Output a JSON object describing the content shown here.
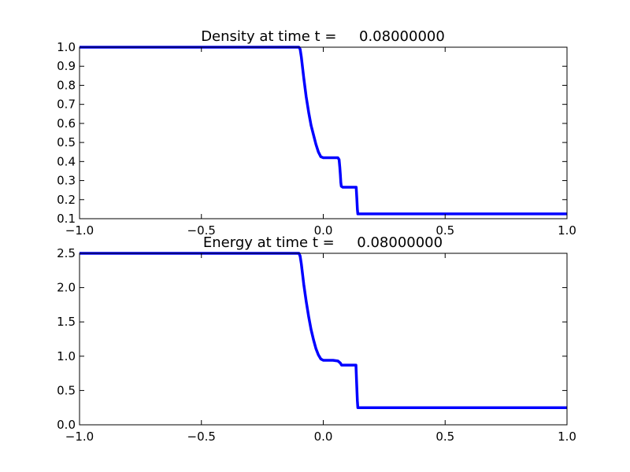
{
  "chart_data": [
    {
      "type": "line",
      "title": "Density at time t =     0.08000000",
      "xlabel": "",
      "ylabel": "",
      "xlim": [
        -1.0,
        1.0
      ],
      "ylim": [
        0.1,
        1.0
      ],
      "xticks": [
        "−1.0",
        "−0.5",
        "0.0",
        "0.5",
        "1.0"
      ],
      "yticks": [
        "0.1",
        "0.2",
        "0.3",
        "0.4",
        "0.5",
        "0.6",
        "0.7",
        "0.8",
        "0.9",
        "1.0"
      ],
      "grid": false,
      "line_color": "#0000ff",
      "series": [
        {
          "x": [
            -1.0,
            -0.1,
            -0.095,
            -0.09,
            -0.08,
            -0.07,
            -0.06,
            -0.05,
            -0.04,
            -0.03,
            -0.02,
            -0.01,
            0.0,
            0.01,
            0.02,
            0.04,
            0.06,
            0.065,
            0.068,
            0.07,
            0.072,
            0.074,
            0.08,
            0.1,
            0.135,
            0.138,
            0.14,
            0.142,
            0.16,
            1.0
          ],
          "y": [
            1.0,
            1.0,
            0.99,
            0.95,
            0.84,
            0.74,
            0.66,
            0.59,
            0.54,
            0.49,
            0.45,
            0.425,
            0.42,
            0.42,
            0.42,
            0.42,
            0.42,
            0.41,
            0.37,
            0.33,
            0.29,
            0.27,
            0.265,
            0.265,
            0.265,
            0.2,
            0.15,
            0.125,
            0.125,
            0.125
          ]
        }
      ]
    },
    {
      "type": "line",
      "title": "Energy at time t =     0.08000000",
      "xlabel": "",
      "ylabel": "",
      "xlim": [
        -1.0,
        1.0
      ],
      "ylim": [
        0.0,
        2.5
      ],
      "xticks": [
        "−1.0",
        "−0.5",
        "0.0",
        "0.5",
        "1.0"
      ],
      "yticks": [
        "0.0",
        "0.5",
        "1.0",
        "1.5",
        "2.0",
        "2.5"
      ],
      "grid": false,
      "line_color": "#0000ff",
      "series": [
        {
          "x": [
            -1.0,
            -0.1,
            -0.095,
            -0.09,
            -0.08,
            -0.07,
            -0.06,
            -0.05,
            -0.04,
            -0.03,
            -0.02,
            -0.01,
            0.0,
            0.01,
            0.02,
            0.04,
            0.06,
            0.07,
            0.075,
            0.08,
            0.1,
            0.134,
            0.137,
            0.14,
            0.142,
            0.16,
            1.0
          ],
          "y": [
            2.5,
            2.5,
            2.46,
            2.35,
            2.05,
            1.8,
            1.58,
            1.39,
            1.24,
            1.11,
            1.02,
            0.96,
            0.94,
            0.94,
            0.94,
            0.94,
            0.93,
            0.9,
            0.87,
            0.87,
            0.87,
            0.87,
            0.6,
            0.35,
            0.25,
            0.25,
            0.25
          ]
        }
      ]
    }
  ]
}
